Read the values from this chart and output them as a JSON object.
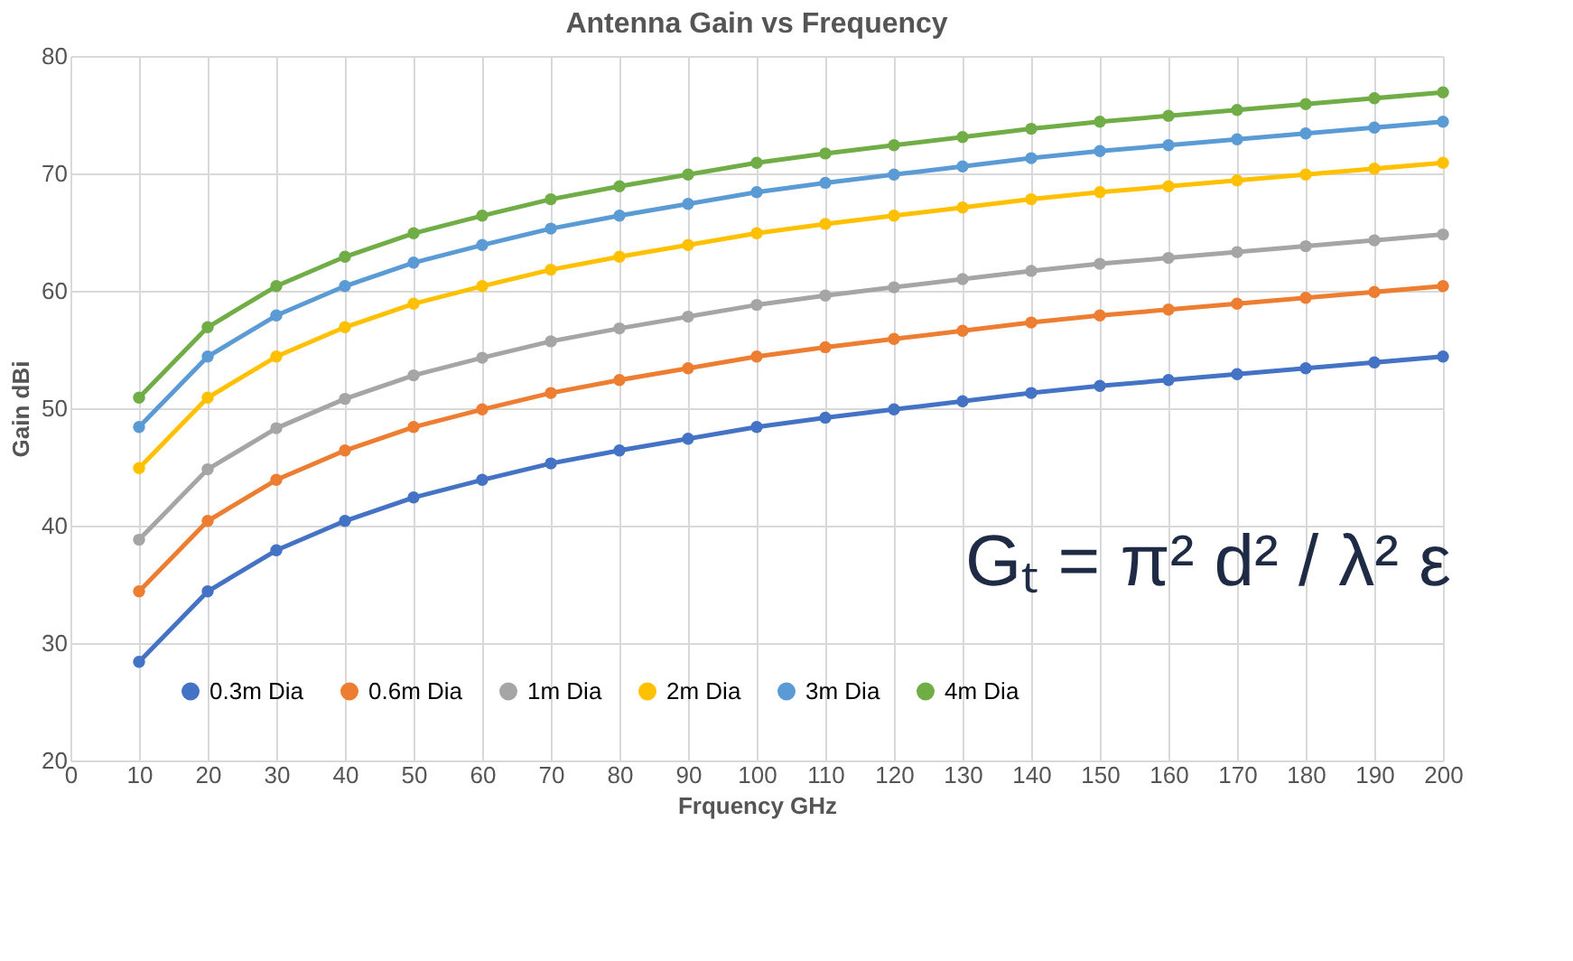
{
  "chart_data": {
    "type": "line",
    "title": "Antenna Gain vs Frequency",
    "xlabel": "Frquency GHz",
    "ylabel": "Gain dBi",
    "x": [
      10,
      20,
      30,
      40,
      50,
      60,
      70,
      80,
      90,
      100,
      110,
      120,
      130,
      140,
      150,
      160,
      170,
      180,
      190,
      200
    ],
    "series": [
      {
        "name": "0.3m Dia",
        "color": "#4472c4",
        "values": [
          28.4,
          34.4,
          37.9,
          40.4,
          42.4,
          43.9,
          45.3,
          46.4,
          47.4,
          48.4,
          49.2,
          49.9,
          50.6,
          51.3,
          51.9,
          52.4,
          52.9,
          53.4,
          53.9,
          54.4
        ]
      },
      {
        "name": "0.6m Dia",
        "color": "#ed7d31",
        "values": [
          34.4,
          40.4,
          43.9,
          46.4,
          48.4,
          49.9,
          51.3,
          52.4,
          53.4,
          54.4,
          55.2,
          55.9,
          56.6,
          57.3,
          57.9,
          58.4,
          58.9,
          59.4,
          59.9,
          60.4
        ]
      },
      {
        "name": "1m Dia",
        "color": "#a5a5a5",
        "values": [
          38.8,
          44.8,
          48.3,
          50.8,
          52.8,
          54.3,
          55.7,
          56.8,
          57.8,
          58.8,
          59.6,
          60.3,
          61.0,
          61.7,
          62.3,
          62.8,
          63.3,
          63.8,
          64.3,
          64.8
        ]
      },
      {
        "name": "2m Dia",
        "color": "#ffc000",
        "values": [
          44.9,
          50.9,
          54.4,
          56.9,
          58.9,
          60.4,
          61.8,
          62.9,
          63.9,
          64.9,
          65.7,
          66.4,
          67.1,
          67.8,
          68.4,
          68.9,
          69.4,
          69.9,
          70.4,
          70.9
        ]
      },
      {
        "name": "3m Dia",
        "color": "#5b9bd5",
        "values": [
          48.4,
          54.4,
          57.9,
          60.4,
          62.4,
          63.9,
          65.3,
          66.4,
          67.4,
          68.4,
          69.2,
          69.9,
          70.6,
          71.3,
          71.9,
          72.4,
          72.9,
          73.4,
          73.9,
          74.4
        ]
      },
      {
        "name": "4m Dia",
        "color": "#70ad47",
        "values": [
          50.9,
          56.9,
          60.4,
          62.9,
          64.9,
          66.4,
          67.8,
          68.9,
          69.9,
          70.9,
          71.7,
          72.4,
          73.1,
          73.8,
          74.4,
          74.9,
          75.4,
          75.9,
          76.4,
          76.9
        ]
      }
    ],
    "xlim": [
      0,
      200
    ],
    "xticks": [
      0,
      10,
      20,
      30,
      40,
      50,
      60,
      70,
      80,
      90,
      100,
      110,
      120,
      130,
      140,
      150,
      160,
      170,
      180,
      190,
      200
    ],
    "ylim": [
      20,
      80
    ],
    "yticks": [
      20,
      30,
      40,
      50,
      60,
      70,
      80
    ],
    "grid": true,
    "legend": "bottom",
    "marker": "circle",
    "line_style": "solid",
    "annotations": [
      "Gₜ = π² d² / λ² ε"
    ]
  }
}
